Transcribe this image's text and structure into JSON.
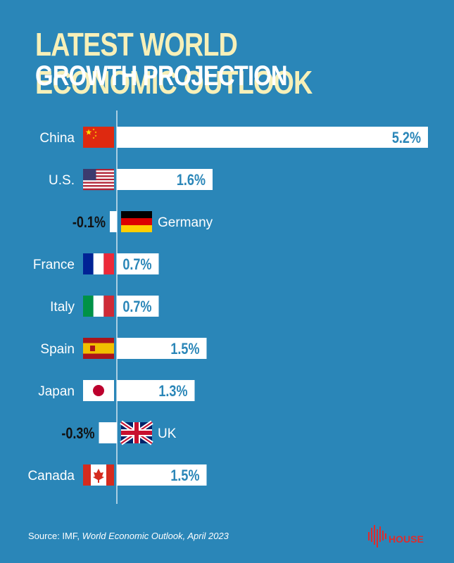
{
  "header": {
    "title_line1": "LATEST WORLD ECONOMIC OUTLOOK",
    "title_line2": "GROWTH PROJECTION"
  },
  "footer": {
    "source_prefix": "Source: IMF, ",
    "source_title": "World Economic Outlook, April 2023",
    "brand": "HOUSE"
  },
  "colors": {
    "background": "#2a86b8",
    "bar": "#ffffff",
    "value_text": "#2a86b8",
    "title_accent": "#f7f0b8",
    "brand": "#e02b2b"
  },
  "chart_data": {
    "type": "bar",
    "orientation": "horizontal",
    "categories": [
      "China",
      "U.S.",
      "Germany",
      "France",
      "Italy",
      "Spain",
      "Japan",
      "UK",
      "Canada"
    ],
    "flags": [
      "china-flag",
      "us-flag",
      "germany-flag",
      "france-flag",
      "italy-flag",
      "spain-flag",
      "japan-flag",
      "uk-flag",
      "canada-flag"
    ],
    "values": [
      5.2,
      1.6,
      -0.1,
      0.7,
      0.7,
      1.5,
      1.3,
      -0.3,
      1.5
    ],
    "labels": [
      "5.2%",
      "1.6%",
      "-0.1%",
      "0.7%",
      "0.7%",
      "1.5%",
      "1.3%",
      "-0.3%",
      "1.5%"
    ],
    "title": "LATEST WORLD ECONOMIC OUTLOOK GROWTH PROJECTION",
    "xlabel": "",
    "ylabel": "",
    "grid": false,
    "legend": "none"
  }
}
